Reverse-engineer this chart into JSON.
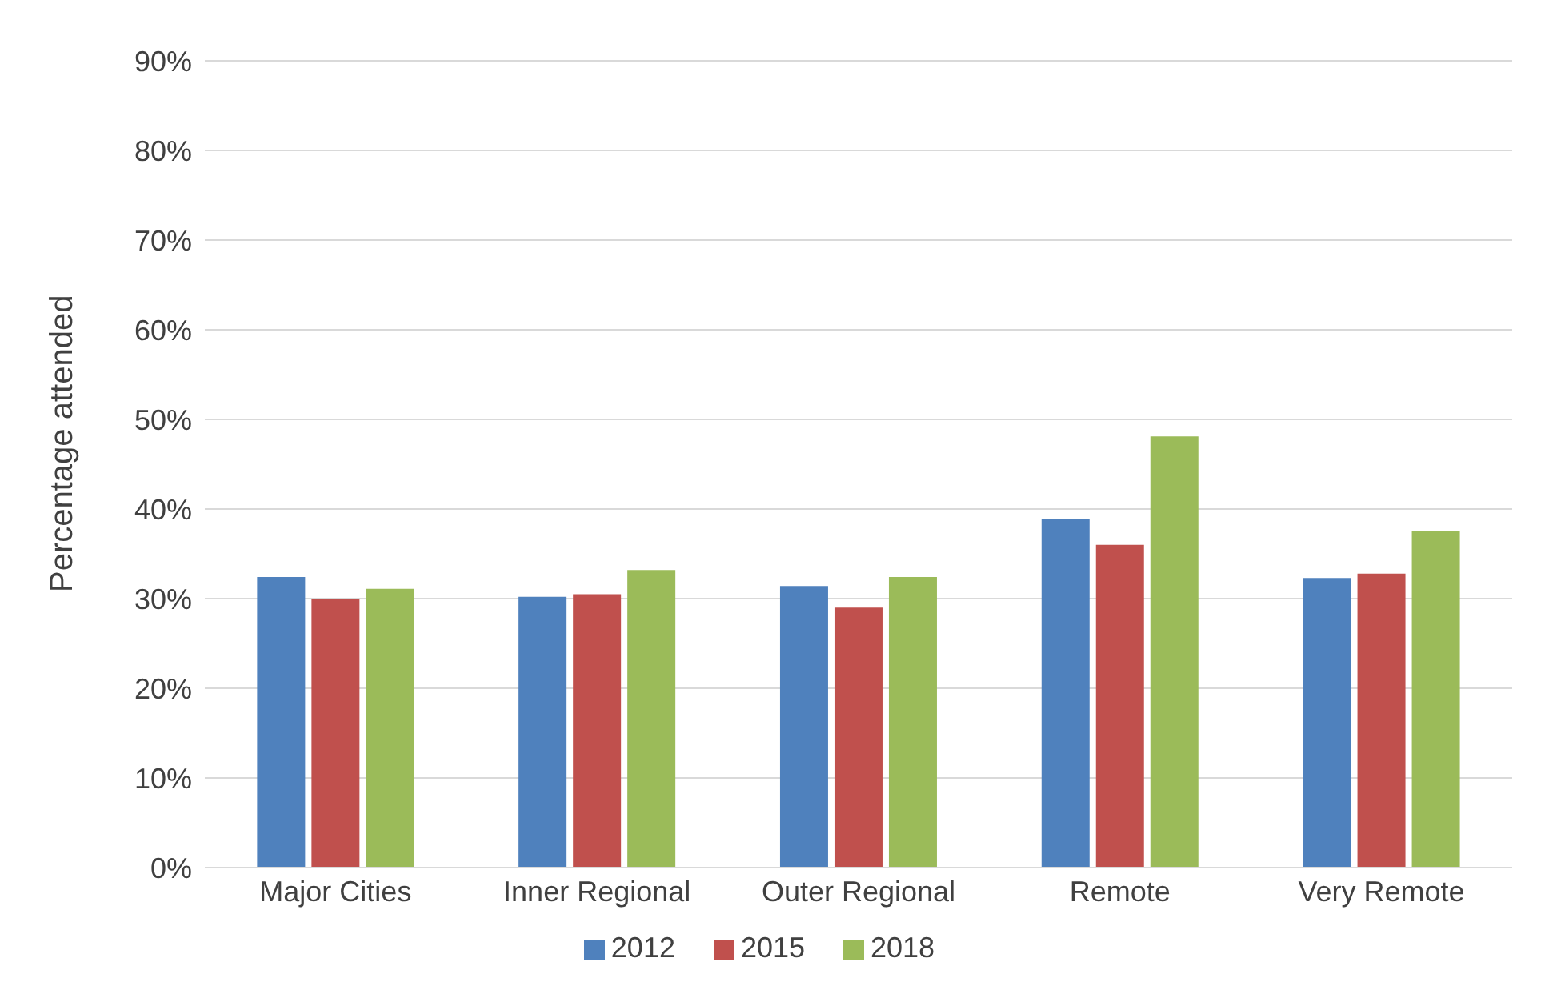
{
  "chart_data": {
    "type": "bar",
    "ylabel": "Percentage attended",
    "categories": [
      "Major Cities",
      "Inner Regional",
      "Outer Regional",
      "Remote",
      "Very Remote"
    ],
    "series": [
      {
        "name": "2012",
        "color": "#4f81bd",
        "values": [
          32.4,
          30.2,
          31.4,
          38.9,
          32.3
        ]
      },
      {
        "name": "2015",
        "color": "#c0504d",
        "values": [
          29.9,
          30.5,
          29.0,
          36.0,
          32.8
        ]
      },
      {
        "name": "2018",
        "color": "#9bbb59",
        "values": [
          31.1,
          33.2,
          32.4,
          48.1,
          37.6
        ]
      }
    ],
    "ylim": [
      0,
      90
    ],
    "yticks": [
      {
        "value": 0,
        "label": "0%"
      },
      {
        "value": 10,
        "label": "10%"
      },
      {
        "value": 20,
        "label": "20%"
      },
      {
        "value": 30,
        "label": "30%"
      },
      {
        "value": 40,
        "label": "40%"
      },
      {
        "value": 50,
        "label": "50%"
      },
      {
        "value": 60,
        "label": "60%"
      },
      {
        "value": 70,
        "label": "70%"
      },
      {
        "value": 80,
        "label": "80%"
      },
      {
        "value": 90,
        "label": "90%"
      }
    ],
    "grid": "y",
    "legend": "bottom"
  }
}
